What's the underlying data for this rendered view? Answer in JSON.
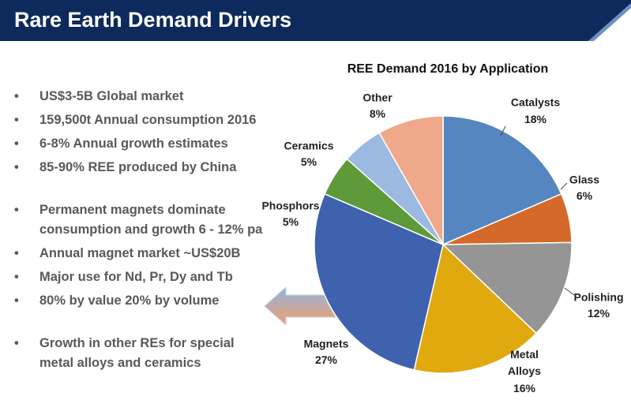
{
  "header": {
    "title": "Rare Earth Demand Drivers"
  },
  "bullets": [
    [
      [
        "US$3-5B Global market"
      ],
      [
        "159,500t Annual consumption 2016"
      ],
      [
        "6-8% Annual growth estimates"
      ],
      [
        "85-90% REE produced by China"
      ]
    ],
    [
      [
        "Permanent magnets dominate",
        "consumption and growth 6 - 12% pa"
      ],
      [
        "Annual magnet market ~US$20B"
      ],
      [
        "Major use for Nd, Pr, Dy and Tb"
      ],
      [
        "80% by value 20% by volume"
      ]
    ],
    [
      [
        "Growth in other REs for special",
        "metal alloys and ceramics"
      ]
    ]
  ],
  "chart_data": {
    "type": "pie",
    "title": "REE Demand 2016 by Application",
    "categories": [
      "Catalysts",
      "Glass",
      "Polishing",
      "Metal Alloys",
      "Magnets",
      "Phosphors",
      "Ceramics",
      "Other"
    ],
    "values": [
      18,
      6,
      12,
      16,
      27,
      5,
      5,
      8
    ],
    "value_labels": [
      "18%",
      "6%",
      "12%",
      "16%",
      "27%",
      "5%",
      "5%",
      "8%"
    ],
    "colors": [
      "#5586c0",
      "#d4692a",
      "#959595",
      "#e0a90e",
      "#3e62ad",
      "#5f9a3a",
      "#9bb9e1",
      "#efa98a"
    ]
  }
}
